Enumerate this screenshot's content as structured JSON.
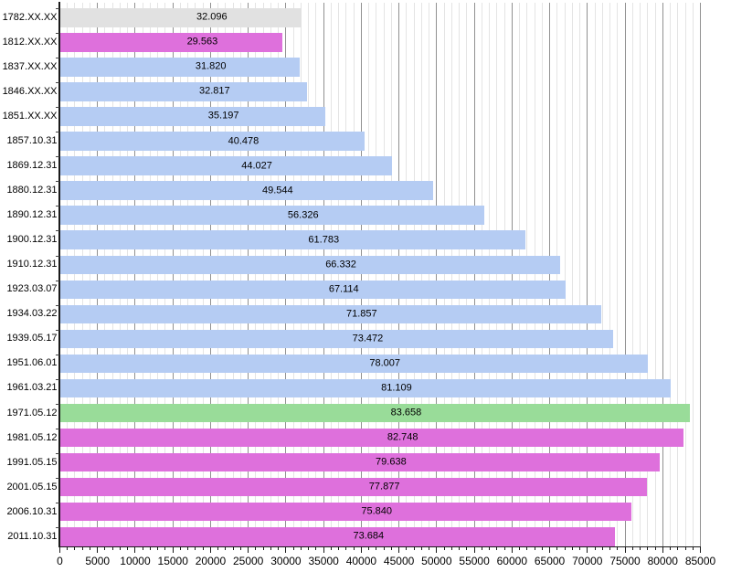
{
  "chart_data": {
    "type": "bar",
    "orientation": "horizontal",
    "title": "",
    "xlabel": "",
    "ylabel": "",
    "categories": [
      "1782.XX.XX",
      "1812.XX.XX",
      "1837.XX.XX",
      "1846.XX.XX",
      "1851.XX.XX",
      "1857.10.31",
      "1869.12.31",
      "1880.12.31",
      "1890.12.31",
      "1900.12.31",
      "1910.12.31",
      "1923.03.07",
      "1934.03.22",
      "1939.05.17",
      "1951.06.01",
      "1961.03.21",
      "1971.05.12",
      "1981.05.12",
      "1991.05.15",
      "2001.05.15",
      "2006.10.31",
      "2011.10.31"
    ],
    "values": [
      32096,
      29563,
      31820,
      32817,
      35197,
      40478,
      44027,
      49544,
      56326,
      61783,
      66332,
      67114,
      71857,
      73472,
      78007,
      81109,
      83658,
      82748,
      79638,
      77877,
      75840,
      73684
    ],
    "value_labels": [
      "32.096",
      "29.563",
      "31.820",
      "32.817",
      "35.197",
      "40.478",
      "44.027",
      "49.544",
      "56.326",
      "61.783",
      "66.332",
      "67.114",
      "71.857",
      "73.472",
      "78.007",
      "81.109",
      "83.658",
      "82.748",
      "79.638",
      "77.877",
      "75.840",
      "73.684"
    ],
    "bar_color_keys": [
      "gray",
      "magenta",
      "blue",
      "blue",
      "blue",
      "blue",
      "blue",
      "blue",
      "blue",
      "blue",
      "blue",
      "blue",
      "blue",
      "blue",
      "blue",
      "blue",
      "green",
      "magenta",
      "magenta",
      "magenta",
      "magenta",
      "magenta"
    ],
    "palette": {
      "gray": "#e1e1e1",
      "blue": "#b5ccf3",
      "green": "#99dc99",
      "magenta": "#de70dc"
    },
    "xlim": [
      0,
      85000
    ],
    "x_major_step": 5000,
    "x_minor_step": 1000,
    "x_tick_labels": [
      "0",
      "5000",
      "10000",
      "15000",
      "20000",
      "25000",
      "30000",
      "35000",
      "40000",
      "45000",
      "50000",
      "55000",
      "60000",
      "65000",
      "70000",
      "75000",
      "80000",
      "85000"
    ],
    "grid": {
      "minor_color": "#e4e4e4",
      "major_color": "#919191",
      "on": true
    },
    "legend": "none",
    "axis_color": "#1a1a1a",
    "text_color": "#000000"
  }
}
